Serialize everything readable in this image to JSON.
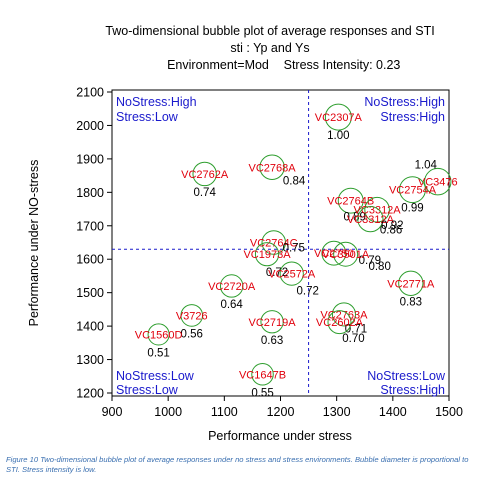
{
  "chart_data": {
    "type": "scatter",
    "title": "Two-dimensional bubble plot of average responses and STI",
    "subtitle": "sti : Yp and Ys",
    "environment_label": "Environment=Mod",
    "stress_label": "Stress Intensity: 0.23",
    "xlabel": "Performance under stress",
    "ylabel": "Performance under NO-stress",
    "xlim": [
      900,
      1500
    ],
    "ylim": [
      1190,
      2100
    ],
    "xticks": [
      "900",
      "1000",
      "1100",
      "1200",
      "1300",
      "1400",
      "1500"
    ],
    "yticks": [
      "1200",
      "1300",
      "1400",
      "1500",
      "1600",
      "1700",
      "1800",
      "1900",
      "2000",
      "2100"
    ],
    "reference_lines": {
      "x": 1250,
      "y": 1630
    },
    "quadrant_labels": {
      "top_left": [
        "NoStress:High",
        "Stress:Low"
      ],
      "top_right": [
        "NoStress:High",
        "Stress:High"
      ],
      "bottom_left": [
        "NoStress:Low",
        "Stress:Low"
      ],
      "bottom_right": [
        "NoStress:Low",
        "Stress:High"
      ]
    },
    "bubble_color": "#2e9e2e",
    "label_color": "#e0000c",
    "quadrant_color": "#1a1acc",
    "points": [
      {
        "name": "VC2307A",
        "x": 1303,
        "y": 2025,
        "sti": "1.00"
      },
      {
        "name": "VC3476",
        "x": 1480,
        "y": 1832,
        "sti": "1.04"
      },
      {
        "name": "VC2754A",
        "x": 1435,
        "y": 1808,
        "sti": "0.99"
      },
      {
        "name": "VC2762A",
        "x": 1065,
        "y": 1855,
        "sti": "0.74"
      },
      {
        "name": "VC2768A",
        "x": 1185,
        "y": 1875,
        "sti": "0.84"
      },
      {
        "name": "VC2764B",
        "x": 1325,
        "y": 1775,
        "sti": "0.89"
      },
      {
        "name": "VC3312A",
        "x": 1372,
        "y": 1748,
        "sti": "0.86"
      },
      {
        "name": "VC3312A-b",
        "x": 1360,
        "y": 1720,
        "sti": "0.92"
      },
      {
        "name": "VC2764C",
        "x": 1188,
        "y": 1650,
        "sti": "0.75"
      },
      {
        "name": "VC1973A",
        "x": 1176,
        "y": 1615,
        "sti": "0.72"
      },
      {
        "name": "VC2750",
        "x": 1295,
        "y": 1618,
        "sti": "0.79"
      },
      {
        "name": "VC3501A",
        "x": 1316,
        "y": 1615,
        "sti": "0.80"
      },
      {
        "name": "VC2771A",
        "x": 1432,
        "y": 1528,
        "sti": "0.83"
      },
      {
        "name": "VC2720A",
        "x": 1113,
        "y": 1520,
        "sti": "0.64"
      },
      {
        "name": "VC2572A",
        "x": 1220,
        "y": 1557,
        "sti": "0.72"
      },
      {
        "name": "V3726",
        "x": 1042,
        "y": 1432,
        "sti": "0.56"
      },
      {
        "name": "VC2719A",
        "x": 1185,
        "y": 1413,
        "sti": "0.63"
      },
      {
        "name": "VC2763A",
        "x": 1313,
        "y": 1435,
        "sti": "0.71"
      },
      {
        "name": "VC2602A",
        "x": 1305,
        "y": 1412,
        "sti": "0.70"
      },
      {
        "name": "VC1560D",
        "x": 983,
        "y": 1375,
        "sti": "0.51"
      },
      {
        "name": "VC1647B",
        "x": 1168,
        "y": 1256,
        "sti": "0.55"
      }
    ]
  },
  "caption": "Figure 10 Two-dimensional bubble plot of average responses under no stress and stress environments. Bubble diameter is proportional to STI. Stress intensity is low."
}
